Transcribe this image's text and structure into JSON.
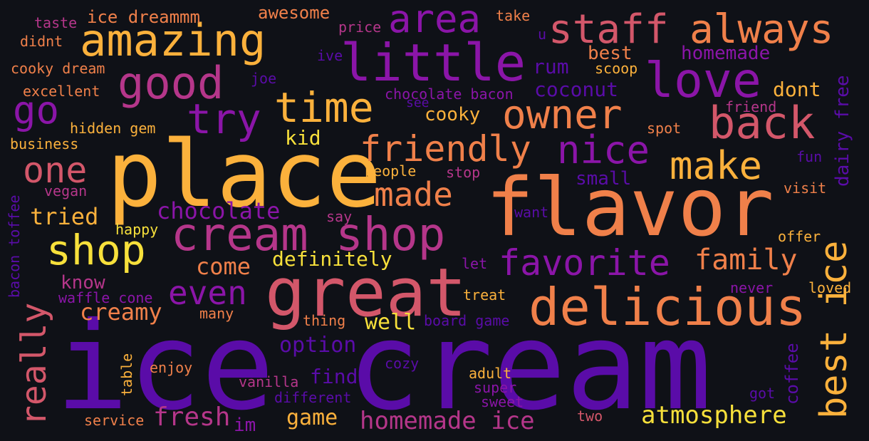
{
  "palette": {
    "background": "#0f1117",
    "deep_purple": "#5a0ca8",
    "purple": "#8b15a8",
    "magenta": "#b5368a",
    "pink": "#d3576a",
    "orange": "#f0804a",
    "amber": "#fbb13c",
    "yellow": "#f7e03b"
  },
  "words": {
    "ice_cream": "ice cream",
    "place": "place",
    "flavor": "flavor",
    "great": "great",
    "delicious": "delicious",
    "cream_shop": "cream shop",
    "little": "little",
    "amazing": "amazing",
    "good": "good",
    "love": "love",
    "staff": "staff",
    "always": "always",
    "area": "area",
    "owner": "owner",
    "back": "back",
    "time": "time",
    "try": "try",
    "go": "go",
    "friendly": "friendly",
    "nice": "nice",
    "make": "make",
    "one": "one",
    "shop": "shop",
    "made": "made",
    "really": "really",
    "favorite": "favorite",
    "even": "even",
    "best_ice": "best ice",
    "family": "family",
    "atmosphere": "atmosphere",
    "homemade_ice": "homemade ice",
    "fresh": "fresh",
    "chocolate": "chocolate",
    "creamy": "creamy",
    "tried": "tried",
    "come": "come",
    "definitely": "definitely",
    "option": "option",
    "well": "well",
    "game": "game",
    "kid": "kid",
    "cooky": "cooky",
    "coconut": "coconut",
    "rum": "rum",
    "best": "best",
    "homemade": "homemade",
    "dont": "dont",
    "ice_dreammm": "ice dreammm",
    "awesome": "awesome",
    "take": "take",
    "taste": "taste",
    "price": "price",
    "didnt": "didnt",
    "ive": "ive",
    "u": "u",
    "cooky_dream": "cooky dream",
    "joe": "joe",
    "scoop": "scoop",
    "excellent": "excellent",
    "chocolate_bacon": "chocolate bacon",
    "see": "see",
    "friend": "friend",
    "hidden_gem": "hidden gem",
    "spot": "spot",
    "business": "business",
    "dairy_free": "dairy free",
    "people": "people",
    "stop": "stop",
    "fun": "fun",
    "small": "small",
    "vegan": "vegan",
    "visit": "visit",
    "bacon_toffee": "bacon toffee",
    "happy": "happy",
    "say": "say",
    "want": "want",
    "offer": "offer",
    "know": "know",
    "let": "let",
    "waffle_cone": "waffle cone",
    "treat": "treat",
    "never": "never",
    "loved": "loved",
    "many": "many",
    "thing": "thing",
    "board_game": "board game",
    "coffee": "coffee",
    "table": "table",
    "enjoy": "enjoy",
    "cozy": "cozy",
    "adult": "adult",
    "vanilla": "vanilla",
    "find": "find",
    "super": "super",
    "different": "different",
    "sweet": "sweet",
    "got": "got",
    "service": "service",
    "im": "im",
    "two": "two"
  }
}
